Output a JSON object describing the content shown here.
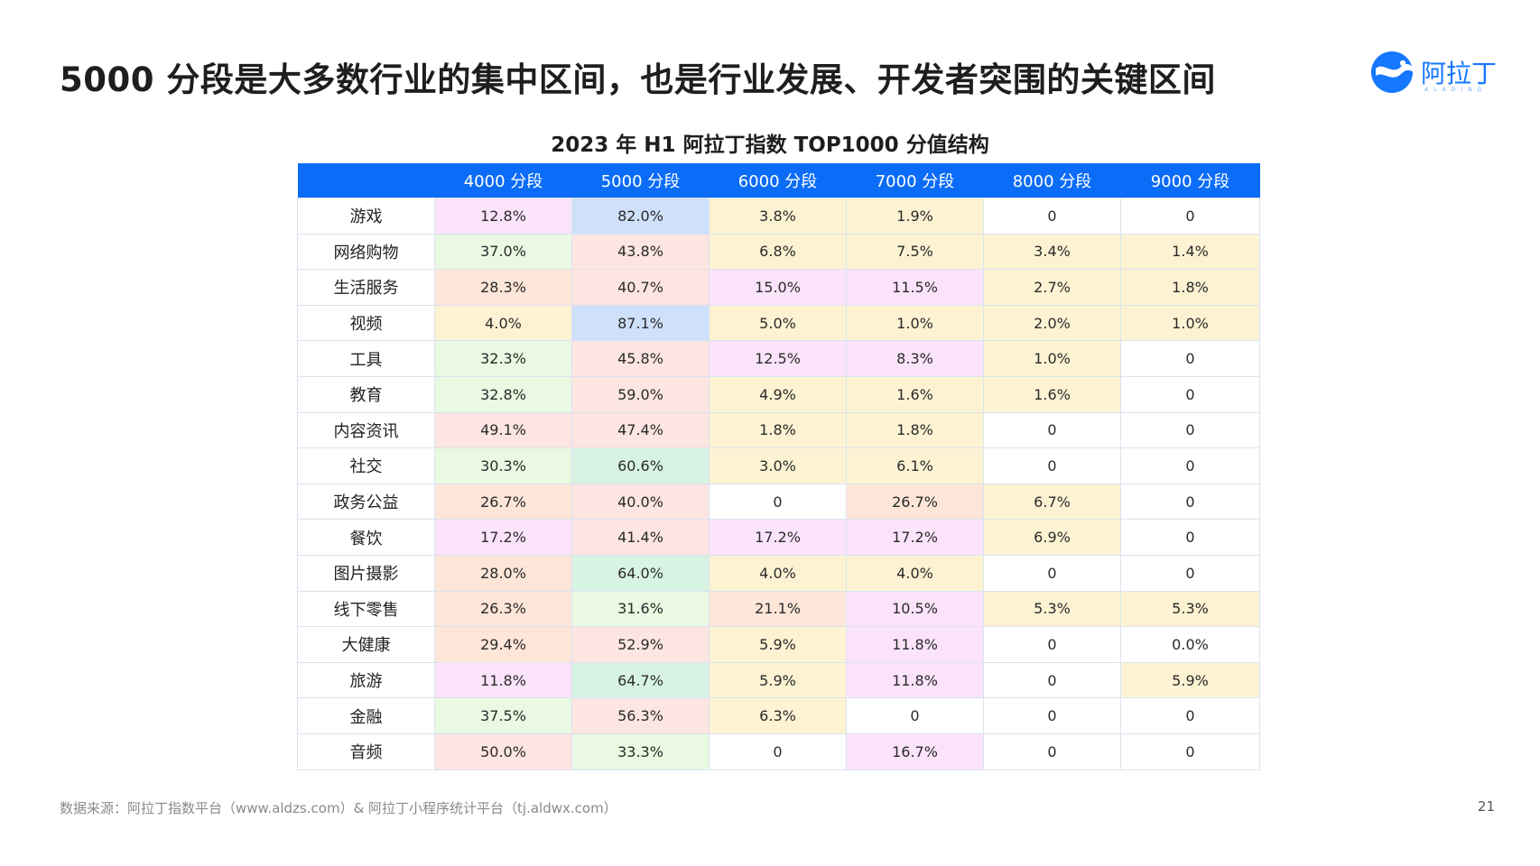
{
  "headline": "5000 分段是大多数行业的集中区间，也是行业发展、开发者突围的关键区间",
  "logo": {
    "text": "阿拉丁",
    "subtext": "ALADING"
  },
  "chart_data": {
    "type": "table",
    "title": "2023 年 H1 阿拉丁指数 TOP1000 分值结构",
    "columns": [
      "",
      "4000 分段",
      "5000 分段",
      "6000 分段",
      "7000 分段",
      "8000 分段",
      "9000 分段"
    ],
    "rows": [
      {
        "label": "游戏",
        "values": [
          "12.8%",
          "82.0%",
          "3.8%",
          "1.9%",
          "0",
          "0"
        ]
      },
      {
        "label": "网络购物",
        "values": [
          "37.0%",
          "43.8%",
          "6.8%",
          "7.5%",
          "3.4%",
          "1.4%"
        ]
      },
      {
        "label": "生活服务",
        "values": [
          "28.3%",
          "40.7%",
          "15.0%",
          "11.5%",
          "2.7%",
          "1.8%"
        ]
      },
      {
        "label": "视频",
        "values": [
          "4.0%",
          "87.1%",
          "5.0%",
          "1.0%",
          "2.0%",
          "1.0%"
        ]
      },
      {
        "label": "工具",
        "values": [
          "32.3%",
          "45.8%",
          "12.5%",
          "8.3%",
          "1.0%",
          "0"
        ]
      },
      {
        "label": "教育",
        "values": [
          "32.8%",
          "59.0%",
          "4.9%",
          "1.6%",
          "1.6%",
          "0"
        ]
      },
      {
        "label": "内容资讯",
        "values": [
          "49.1%",
          "47.4%",
          "1.8%",
          "1.8%",
          "0",
          "0"
        ]
      },
      {
        "label": "社交",
        "values": [
          "30.3%",
          "60.6%",
          "3.0%",
          "6.1%",
          "0",
          "0"
        ]
      },
      {
        "label": "政务公益",
        "values": [
          "26.7%",
          "40.0%",
          "0",
          "26.7%",
          "6.7%",
          "0"
        ]
      },
      {
        "label": "餐饮",
        "values": [
          "17.2%",
          "41.4%",
          "17.2%",
          "17.2%",
          "6.9%",
          "0"
        ]
      },
      {
        "label": "图片摄影",
        "values": [
          "28.0%",
          "64.0%",
          "4.0%",
          "4.0%",
          "0",
          "0"
        ]
      },
      {
        "label": "线下零售",
        "values": [
          "26.3%",
          "31.6%",
          "21.1%",
          "10.5%",
          "5.3%",
          "5.3%"
        ]
      },
      {
        "label": "大健康",
        "values": [
          "29.4%",
          "52.9%",
          "5.9%",
          "11.8%",
          "0",
          "0.0%"
        ]
      },
      {
        "label": "旅游",
        "values": [
          "11.8%",
          "64.7%",
          "5.9%",
          "11.8%",
          "0",
          "5.9%"
        ]
      },
      {
        "label": "金融",
        "values": [
          "37.5%",
          "56.3%",
          "6.3%",
          "0",
          "0",
          "0"
        ]
      },
      {
        "label": "音频",
        "values": [
          "50.0%",
          "33.3%",
          "0",
          "16.7%",
          "0",
          "0"
        ]
      }
    ]
  },
  "colors": {
    "header_bg": "#0b6cf7",
    "pink": "#fde5e1",
    "peach": "#fde6d8",
    "yellow": "#fdf3d3",
    "lavender": "#fbe4fb",
    "green_light": "#e9f9e2",
    "green": "#d7f3e4",
    "blue": "#cfe0fb",
    "white": "#ffffff"
  },
  "cell_colors": [
    [
      "lavender",
      "blue",
      "yellow",
      "yellow",
      "white",
      "white"
    ],
    [
      "green_light",
      "pink",
      "yellow",
      "yellow",
      "yellow",
      "yellow"
    ],
    [
      "peach",
      "pink",
      "lavender",
      "lavender",
      "yellow",
      "yellow"
    ],
    [
      "yellow",
      "blue",
      "yellow",
      "yellow",
      "yellow",
      "yellow"
    ],
    [
      "green_light",
      "pink",
      "lavender",
      "lavender",
      "yellow",
      "white"
    ],
    [
      "green_light",
      "pink",
      "yellow",
      "yellow",
      "yellow",
      "white"
    ],
    [
      "pink",
      "pink",
      "yellow",
      "yellow",
      "white",
      "white"
    ],
    [
      "green_light",
      "green",
      "yellow",
      "yellow",
      "white",
      "white"
    ],
    [
      "peach",
      "pink",
      "white",
      "peach",
      "yellow",
      "white"
    ],
    [
      "lavender",
      "pink",
      "lavender",
      "lavender",
      "yellow",
      "white"
    ],
    [
      "peach",
      "green",
      "yellow",
      "yellow",
      "white",
      "white"
    ],
    [
      "peach",
      "green_light",
      "peach",
      "lavender",
      "yellow",
      "yellow"
    ],
    [
      "peach",
      "pink",
      "yellow",
      "lavender",
      "white",
      "white"
    ],
    [
      "lavender",
      "green",
      "yellow",
      "lavender",
      "white",
      "yellow"
    ],
    [
      "green_light",
      "pink",
      "yellow",
      "white",
      "white",
      "white"
    ],
    [
      "pink",
      "green_light",
      "white",
      "lavender",
      "white",
      "white"
    ]
  ],
  "footer": {
    "source": "数据来源：阿拉丁指数平台（www.aldzs.com）& 阿拉丁小程序统计平台（tj.aldwx.com）",
    "page_number": "21"
  }
}
